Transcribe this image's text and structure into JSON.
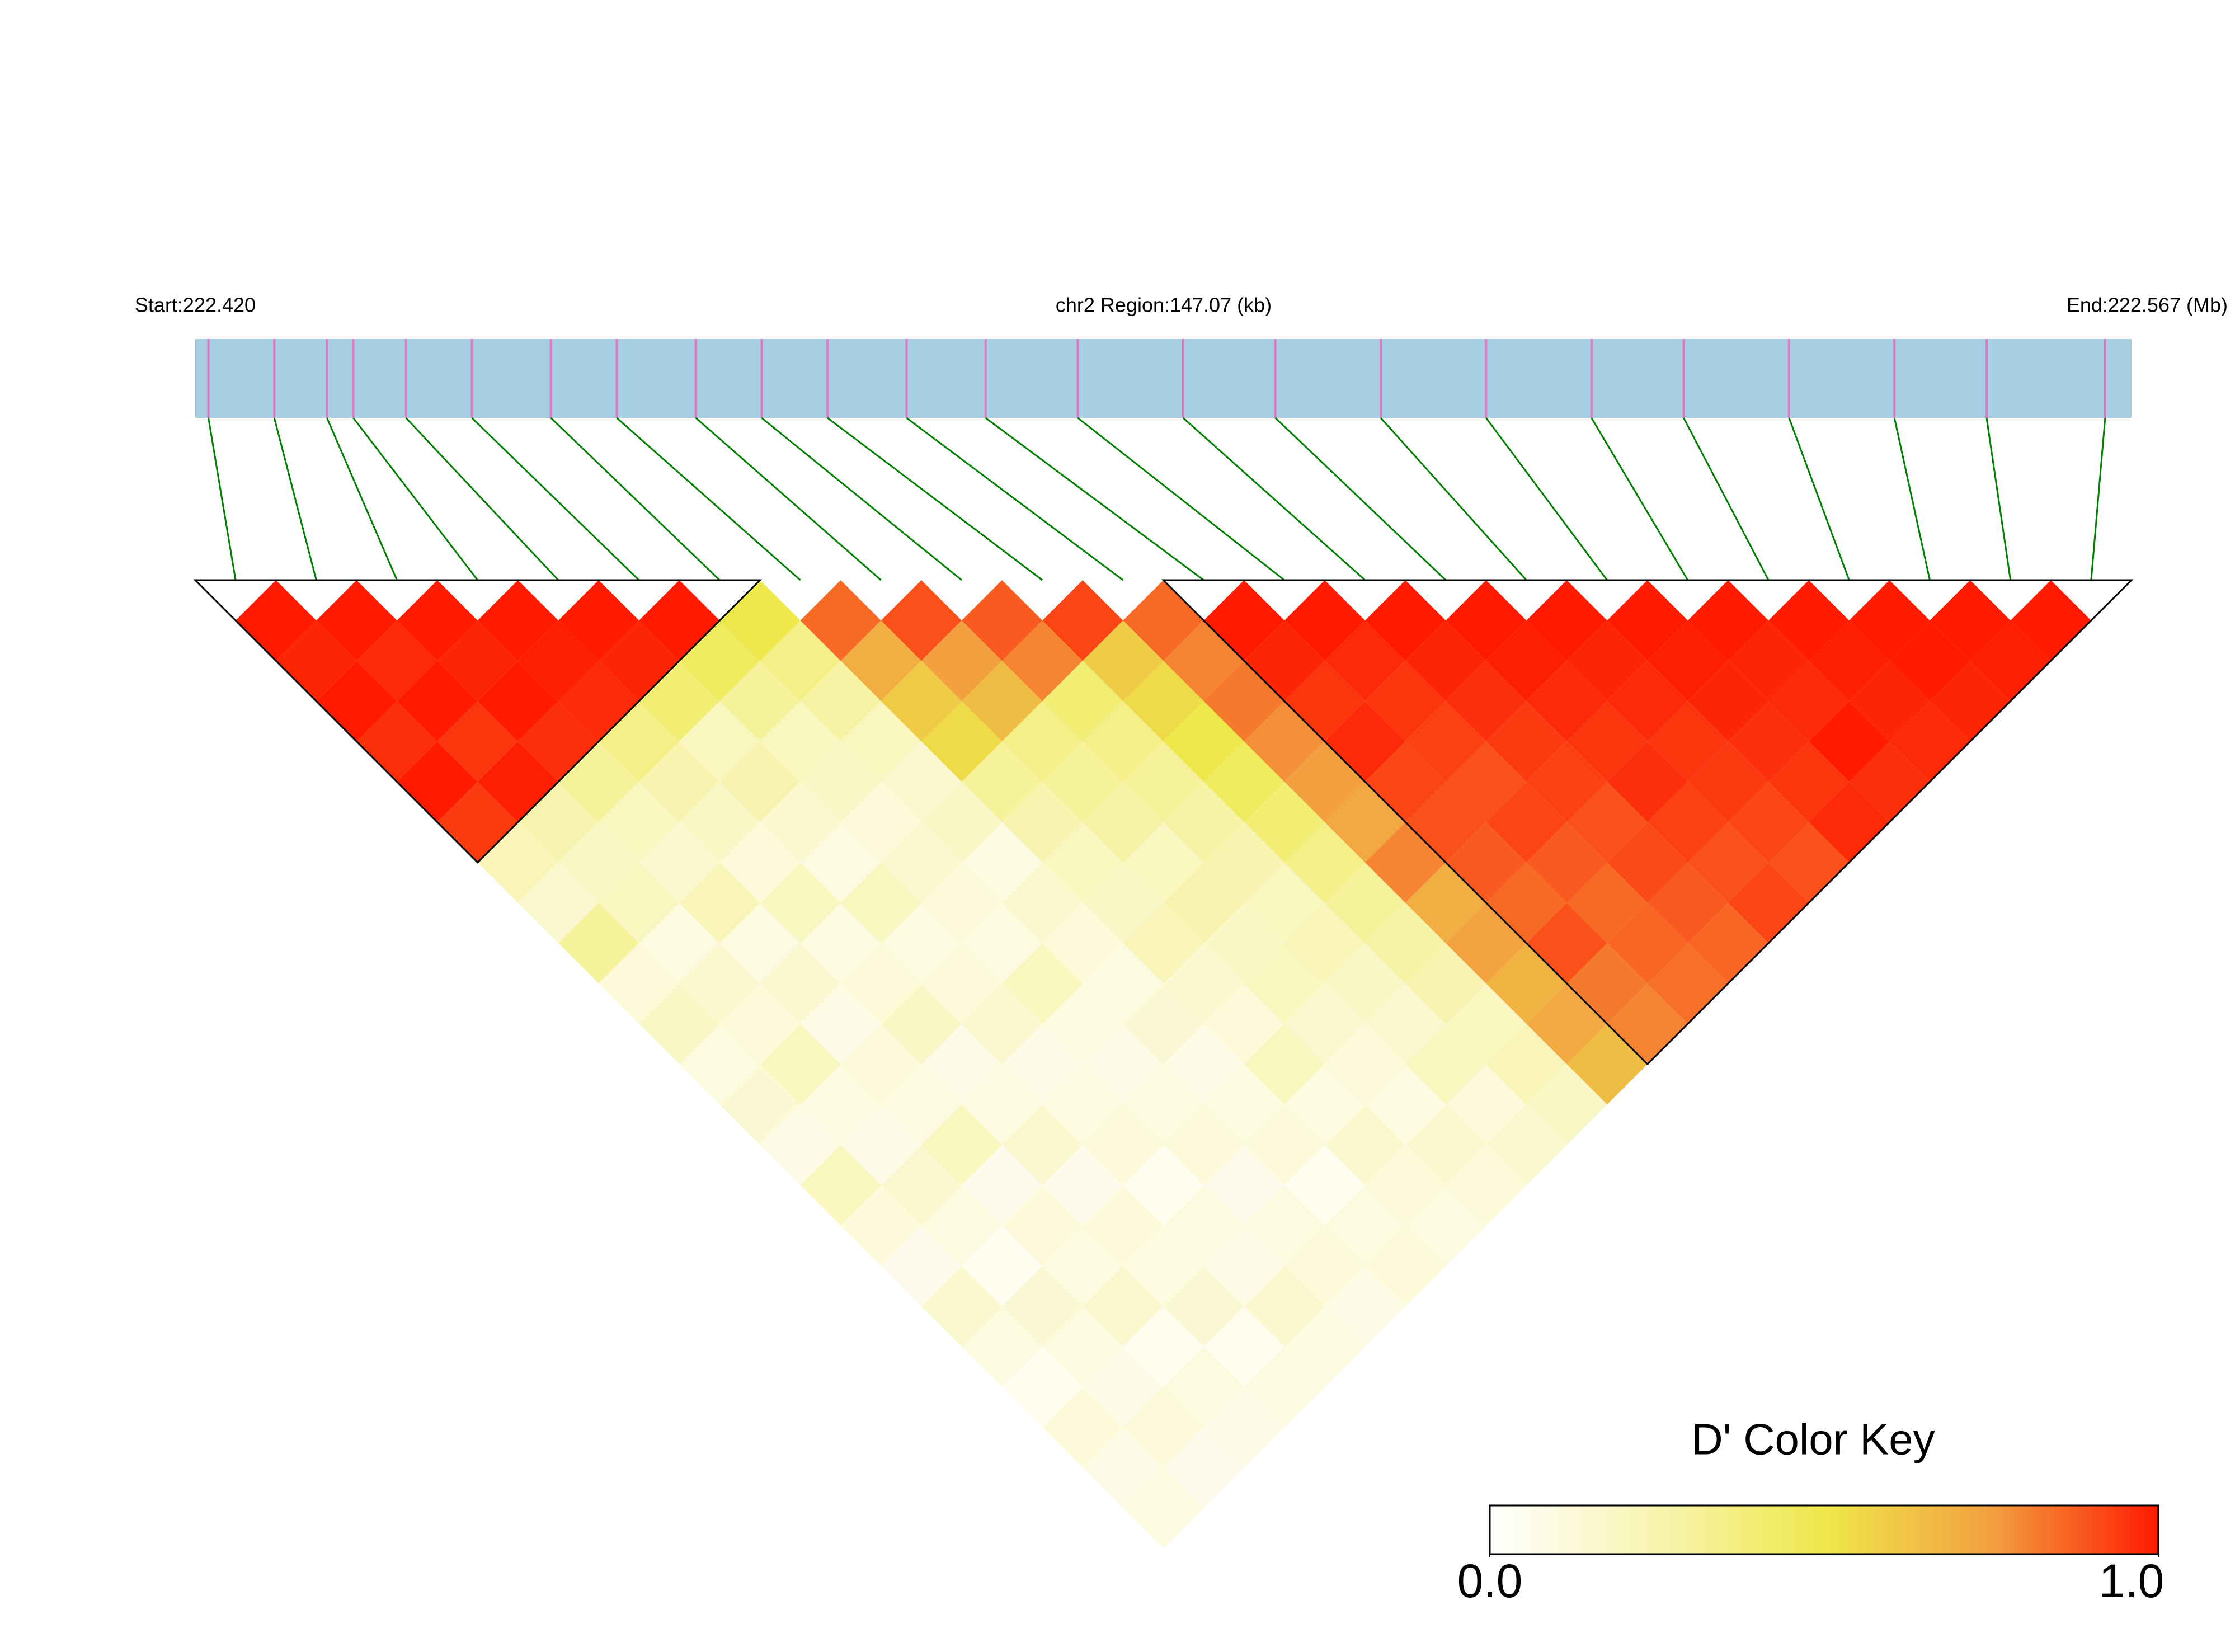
{
  "chart_data": {
    "type": "ld_heatmap",
    "start_label": "Start:222.420",
    "region_label": "chr2 Region:147.07 (kb)",
    "end_label": "End:222.567 (Mb)",
    "xlim": [
      222.42,
      222.567
    ],
    "positions": [
      222.421,
      222.426,
      222.43,
      222.432,
      222.436,
      222.441,
      222.447,
      222.452,
      222.458,
      222.463,
      222.468,
      222.474,
      222.48,
      222.487,
      222.495,
      222.502,
      222.51,
      222.518,
      222.526,
      222.533,
      222.541,
      222.549,
      222.556,
      222.565
    ],
    "track_color": "#a6cee3",
    "snp_color": "#e377c2",
    "link_color": "#008000",
    "blocks": [
      [
        0,
        6
      ],
      [
        12,
        23
      ]
    ],
    "values": [
      [
        1,
        0.98,
        1,
        0.96,
        1,
        0.94,
        0.22,
        0.15,
        0.3,
        0.12,
        0.18,
        0.1,
        0.14,
        0.08,
        0.2,
        0.12,
        0.06,
        0.15,
        0.1,
        0.05,
        0.12,
        0.08,
        0.1
      ],
      [
        1,
        0.97,
        1,
        0.95,
        0.99,
        0.25,
        0.18,
        0.2,
        0.1,
        0.15,
        0.12,
        0.2,
        0.1,
        0.08,
        0.15,
        0.1,
        0.05,
        0.14,
        0.1,
        0.08,
        0.12,
        0.06
      ],
      [
        1,
        0.98,
        1,
        0.96,
        0.3,
        0.2,
        0.15,
        0.22,
        0.1,
        0.15,
        0.08,
        0.12,
        0.1,
        0.2,
        0.06,
        0.12,
        0.1,
        0.15,
        0.05,
        0.1,
        0.08
      ],
      [
        1,
        0.99,
        0.97,
        0.35,
        0.25,
        0.18,
        0.12,
        0.2,
        0.1,
        0.12,
        0.18,
        0.08,
        0.1,
        0.15,
        0.06,
        0.12,
        0.1,
        0.14,
        0.05,
        0.1
      ],
      [
        1,
        0.98,
        0.4,
        0.2,
        0.25,
        0.15,
        0.1,
        0.2,
        0.1,
        0.12,
        0.15,
        0.08,
        0.1,
        0.12,
        0.05,
        0.1,
        0.08,
        0.15,
        0.1
      ],
      [
        1,
        0.45,
        0.3,
        0.2,
        0.18,
        0.12,
        0.15,
        0.12,
        0.1,
        0.2,
        0.1,
        0.08,
        0.1,
        0.12,
        0.06,
        0.1,
        0.12,
        0.08
      ],
      [
        0.5,
        0.35,
        0.28,
        0.2,
        0.15,
        0.18,
        0.1,
        0.15,
        0.12,
        0.1,
        0.14,
        0.08,
        0.1,
        0.12,
        0.05,
        0.1,
        0.12
      ],
      [
        0.85,
        0.7,
        0.6,
        0.55,
        0.3,
        0.25,
        0.2,
        0.18,
        0.22,
        0.15,
        0.12,
        0.2,
        0.1,
        0.15,
        0.12,
        0.1
      ],
      [
        0.9,
        0.75,
        0.65,
        0.35,
        0.3,
        0.28,
        0.2,
        0.25,
        0.18,
        0.2,
        0.15,
        0.12,
        0.1,
        0.15,
        0.12
      ],
      [
        0.88,
        0.8,
        0.4,
        0.35,
        0.3,
        0.28,
        0.25,
        0.2,
        0.22,
        0.18,
        0.15,
        0.2,
        0.12,
        0.15
      ],
      [
        0.92,
        0.6,
        0.55,
        0.5,
        0.45,
        0.4,
        0.35,
        0.3,
        0.28,
        0.25,
        0.2,
        0.22,
        0.18
      ],
      [
        0.85,
        0.8,
        0.82,
        0.78,
        0.75,
        0.72,
        0.8,
        0.7,
        0.74,
        0.68,
        0.72,
        0.65
      ],
      [
        1,
        0.98,
        0.95,
        0.97,
        0.92,
        0.9,
        0.88,
        0.85,
        0.9,
        0.82,
        0.8
      ],
      [
        1,
        0.97,
        0.95,
        0.93,
        0.9,
        0.92,
        0.88,
        0.85,
        0.86,
        0.84
      ],
      [
        1,
        0.98,
        0.96,
        0.94,
        0.93,
        0.9,
        0.91,
        0.88,
        0.86
      ],
      [
        1,
        0.99,
        0.97,
        0.95,
        0.96,
        0.93,
        0.9,
        0.92
      ],
      [
        1,
        0.98,
        0.97,
        0.95,
        0.94,
        0.92,
        0.9
      ],
      [
        1,
        0.99,
        0.98,
        0.96,
        0.95,
        0.97
      ],
      [
        1,
        0.98,
        0.97,
        1,
        0.96
      ],
      [
        1,
        0.99,
        0.98,
        0.97
      ],
      [
        1,
        1,
        0.98
      ],
      [
        1,
        0.99
      ],
      [
        1
      ]
    ],
    "colorbar": {
      "title": "D' Color Key",
      "lim": [
        0,
        1
      ],
      "ticks": [
        {
          "value": 0,
          "label": "0.0"
        },
        {
          "value": 1,
          "label": "1.0"
        }
      ],
      "colors": [
        "#ffffff",
        "#f8f4b0",
        "#eee84a",
        "#f2a040",
        "#ff1a00"
      ]
    }
  }
}
